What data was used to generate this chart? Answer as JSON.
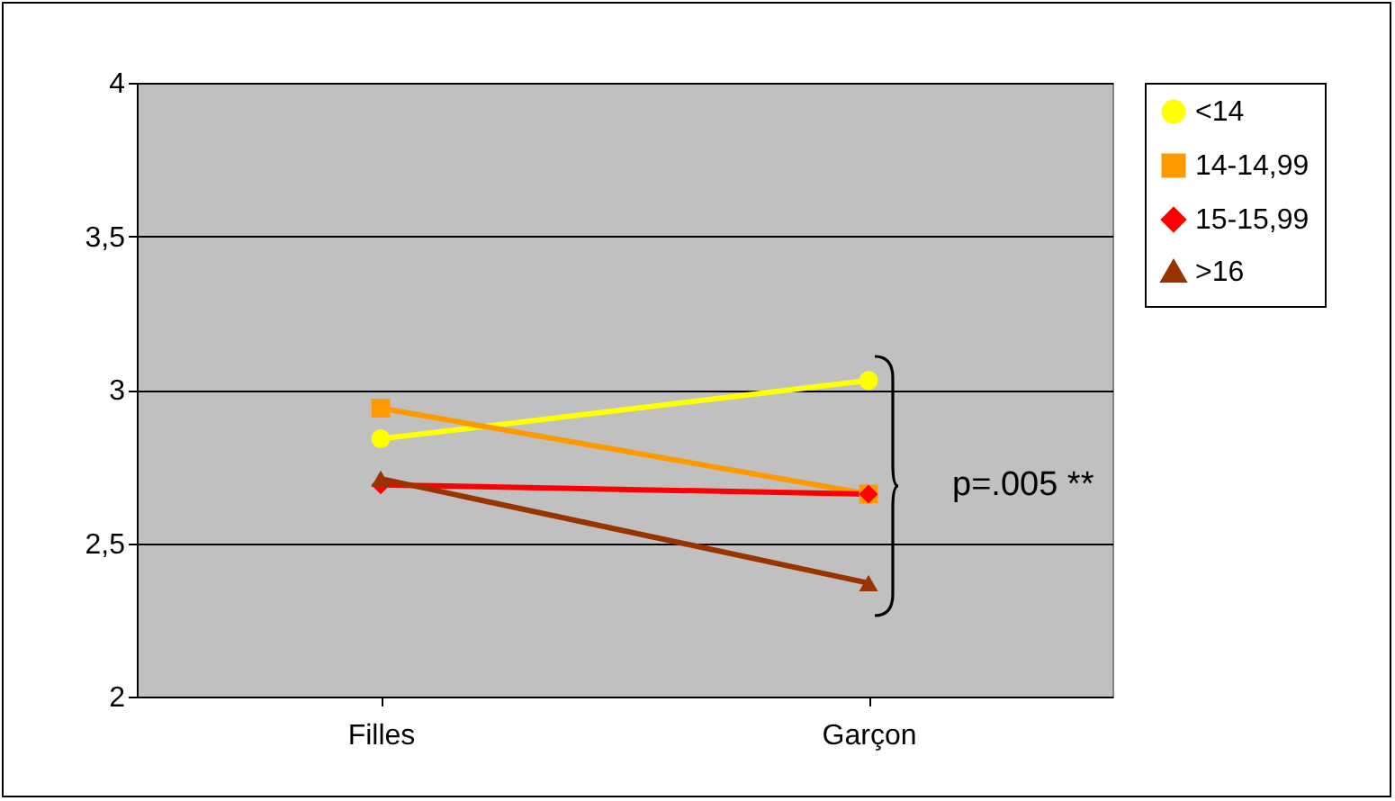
{
  "chart_data": {
    "type": "line",
    "categories": [
      "Filles",
      "Garçon"
    ],
    "series": [
      {
        "name": "<14",
        "color": "#ffff00",
        "marker": "circle",
        "values": [
          2.84,
          3.03
        ]
      },
      {
        "name": "14-14,99",
        "color": "#ff9900",
        "marker": "square",
        "values": [
          2.94,
          2.66
        ]
      },
      {
        "name": "15-15,99",
        "color": "#ff0000",
        "marker": "diamond",
        "values": [
          2.69,
          2.66
        ]
      },
      {
        "name": ">16",
        "color": "#993300",
        "marker": "triangle",
        "values": [
          2.71,
          2.37
        ]
      }
    ],
    "ylim": [
      2,
      4
    ],
    "yticks": [
      2,
      {
        "value": 2.5,
        "label": "2,5"
      },
      3,
      {
        "value": 3.5,
        "label": "3,5"
      },
      4
    ],
    "grid": "y",
    "legend": "right",
    "annotations": [
      "p=.005 **"
    ]
  }
}
